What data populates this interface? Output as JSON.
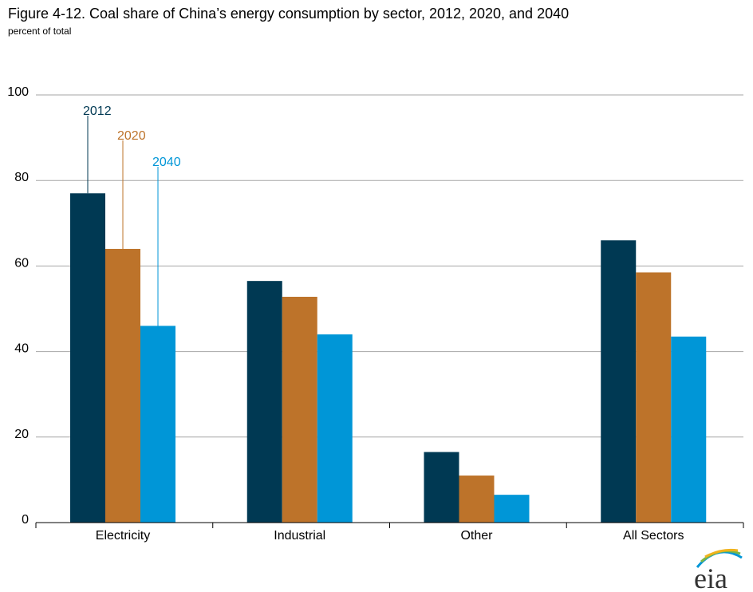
{
  "chart_data": {
    "type": "bar",
    "title": "Figure 4-12. Coal share of China’s energy consumption by sector, 2012, 2020, and 2040",
    "subtitle": "percent of total",
    "xlabel": "",
    "ylabel": "",
    "ylim": [
      0,
      100
    ],
    "yticks": [
      "0",
      "20",
      "40",
      "60",
      "80",
      "100"
    ],
    "grid": true,
    "legend_placement": "callouts above first category",
    "categories": [
      "Electricity",
      "Industrial",
      "Other",
      "All Sectors"
    ],
    "series": [
      {
        "name": "2012",
        "color": "#003953",
        "values": [
          77,
          56.5,
          16.5,
          66
        ]
      },
      {
        "name": "2020",
        "color": "#bd732a",
        "values": [
          64,
          52.8,
          11,
          58.5
        ]
      },
      {
        "name": "2040",
        "color": "#0096d7",
        "values": [
          46,
          44,
          6.5,
          43.5
        ]
      }
    ]
  },
  "logo": {
    "text": "eia"
  }
}
